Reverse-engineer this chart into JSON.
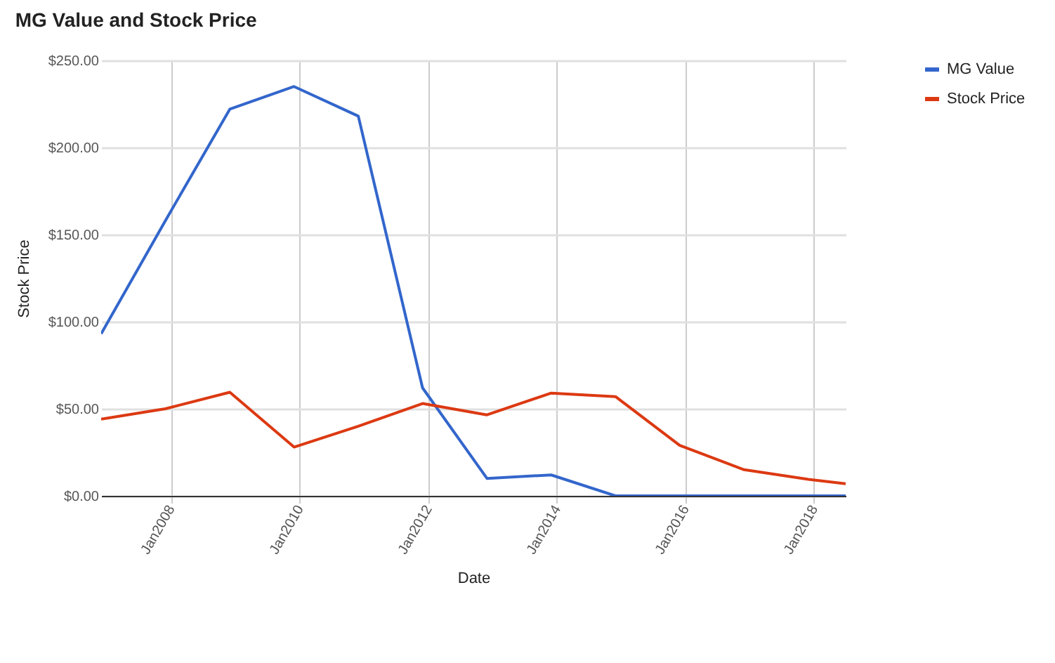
{
  "chart_data": {
    "type": "line",
    "title": "MG Value and Stock Price",
    "xlabel": "Date",
    "ylabel": "Stock Price",
    "x": [
      "2006-12",
      "2007-12",
      "2008-12",
      "2009-12",
      "2010-12",
      "2011-12",
      "2012-12",
      "2013-12",
      "2014-12",
      "2015-12",
      "2016-12",
      "2017-12",
      "2018-07"
    ],
    "series": [
      {
        "name": "MG Value",
        "color": "#3366cc",
        "values": [
          93,
          158,
          222,
          235,
          218,
          62,
          10,
          12,
          0,
          0,
          0,
          0,
          0
        ]
      },
      {
        "name": "Stock Price",
        "color": "#dc3912",
        "values": [
          44,
          50,
          59.5,
          28,
          40,
          53,
          46.5,
          59,
          57,
          29,
          15,
          9.5,
          7
        ]
      }
    ],
    "xlim": [
      "2006-12",
      "2018-07"
    ],
    "xticks": [
      {
        "value": "2008-01",
        "label": "Jan2008"
      },
      {
        "value": "2010-01",
        "label": "Jan2010"
      },
      {
        "value": "2012-01",
        "label": "Jan2012"
      },
      {
        "value": "2014-01",
        "label": "Jan2014"
      },
      {
        "value": "2016-01",
        "label": "Jan2016"
      },
      {
        "value": "2018-01",
        "label": "Jan2018"
      }
    ],
    "ylim": [
      0,
      250
    ],
    "yticks": [
      {
        "value": 0,
        "label": "$0.00"
      },
      {
        "value": 50,
        "label": "$50.00"
      },
      {
        "value": 100,
        "label": "$100.00"
      },
      {
        "value": 150,
        "label": "$150.00"
      },
      {
        "value": 200,
        "label": "$200.00"
      },
      {
        "value": 250,
        "label": "$250.00"
      }
    ],
    "grid": true,
    "legend": "right",
    "marker": "none",
    "line_style": "solid"
  }
}
